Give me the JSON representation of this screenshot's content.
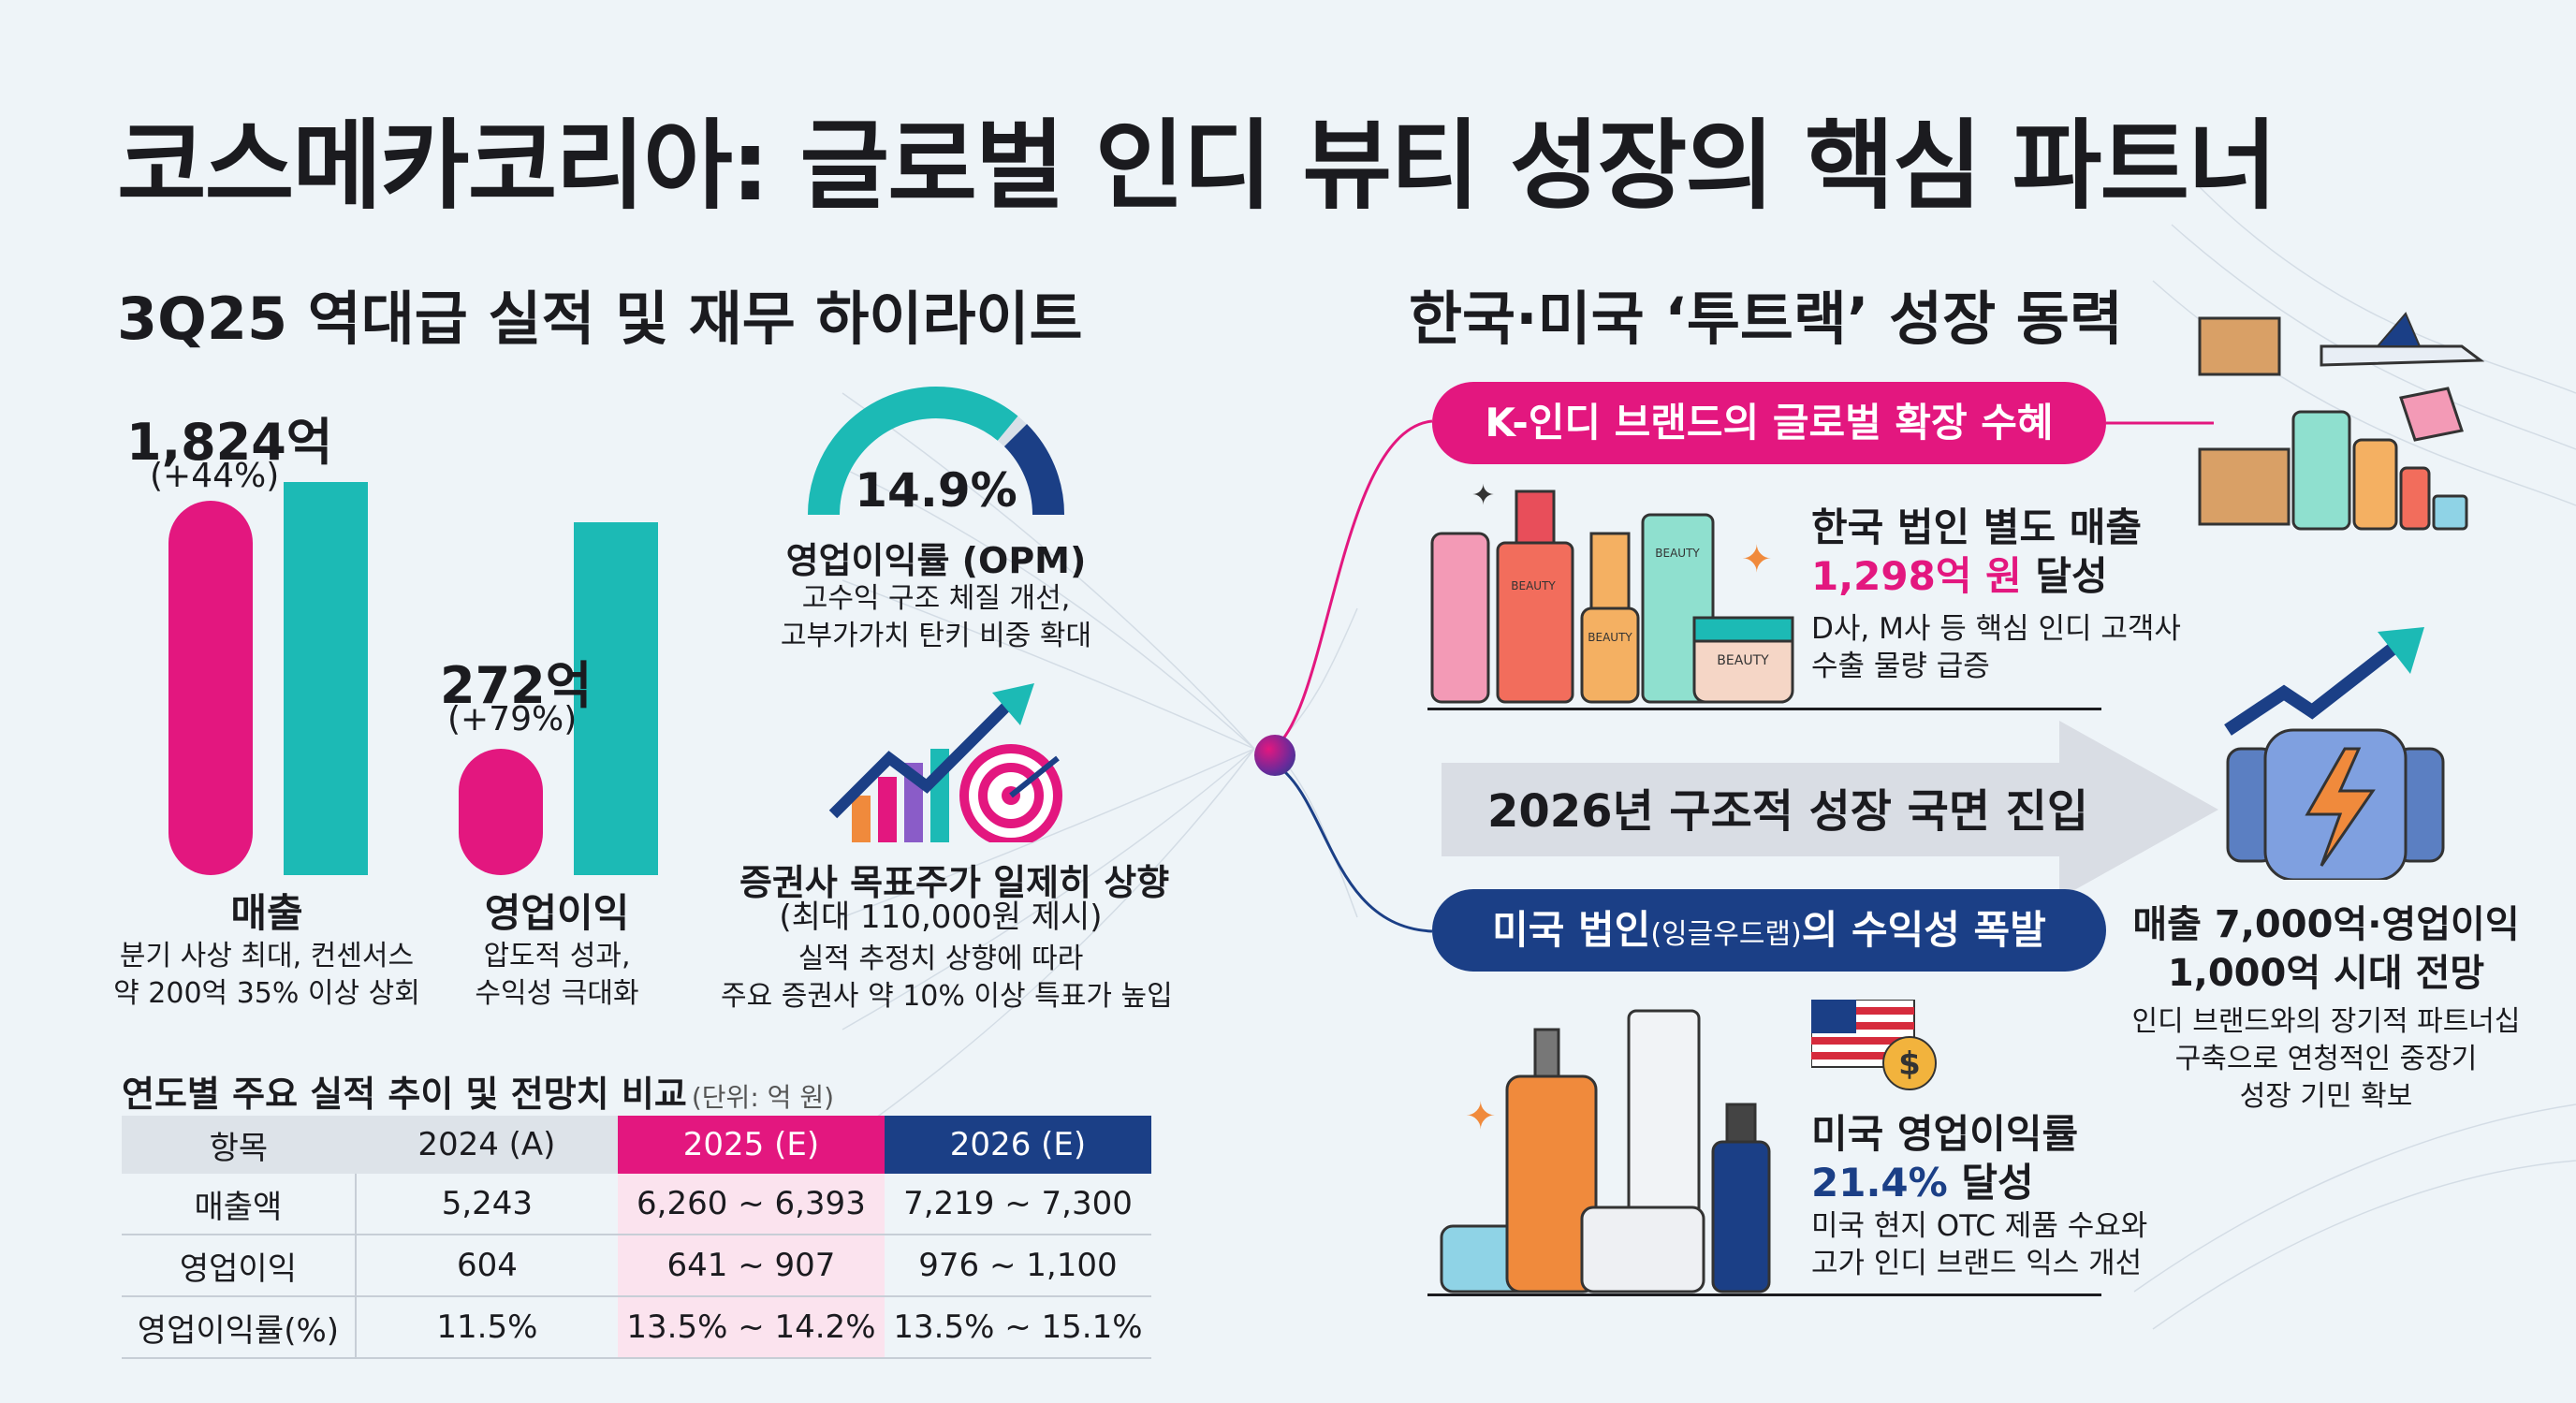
{
  "title": "코스메카코리아: 글로벌 인디 뷰티 성장의 핵심 파트너",
  "left_section": {
    "heading": "3Q25 역대급 실적 및 재무 하이라이트",
    "bar_groups": [
      {
        "value_label": "1,824억",
        "growth": "(+44%)",
        "label": "매출",
        "desc_lines": [
          "분기 사상 최대, 컨센서스",
          "약 200억 35% 이상 상회"
        ]
      },
      {
        "value_label": "272억",
        "growth": "(+79%)",
        "label": "영업이익",
        "desc_lines": [
          "압도적 성과,",
          "수익성 극대화"
        ]
      }
    ],
    "opm": {
      "value": "14.9%",
      "fill_fraction": 0.72,
      "label": "영업이익률 (OPM)",
      "desc_lines": [
        "고수익 구조 체질 개선,",
        "고부가가치 탄키 비중 확대"
      ]
    },
    "target": {
      "label": "증권사 목표주가 일제히 상향",
      "sub": "(최대 110,000원 제시)",
      "desc_lines": [
        "실적 추정치 상향에 따라",
        "주요 증권사 약 10% 이상 특표가 높입"
      ]
    }
  },
  "table": {
    "title": "연도별 주요 실적 추이 및 전망치 비교",
    "unit": "(단위: 억 원)",
    "headers": [
      "항목",
      "2024 (A)",
      "2025 (E)",
      "2026 (E)"
    ],
    "rows": [
      [
        "매출액",
        "5,243",
        "6,260 ~ 6,393",
        "7,219 ~ 7,300"
      ],
      [
        "영업이익",
        "604",
        "641 ~ 907",
        "976 ~ 1,100"
      ],
      [
        "영업이익률(%)",
        "11.5%",
        "13.5% ~ 14.2%",
        "13.5% ~ 15.1%"
      ]
    ]
  },
  "right_section": {
    "heading": "한국·미국 ‘투트랙’ 성장 동력",
    "korea": {
      "pill": "K-인디 브랜드의 글로벌 확장 수혜",
      "title": "한국 법인 별도 매출",
      "value": "1,298억 원",
      "value_suffix": "달성",
      "desc_lines": [
        "D사, M사 등 핵심 인디 고객사",
        "수출 물량 급증"
      ]
    },
    "arrow_text": "2026년 구조적 성장 국면 진입",
    "usa": {
      "pill_main": "미국 법인",
      "pill_small": "(잉글우드랩)",
      "pill_end": "의 수익성 폭발",
      "title": "미국 영업이익률",
      "value": "21.4%",
      "value_suffix": "달성",
      "desc_lines": [
        "미국 현지 OTC 제품 수요와",
        "고가 인디 브랜드 익스 개선"
      ]
    },
    "outlook": {
      "title_lines": [
        "매출 7,000억·영업이익",
        "1,000억 시대 전망"
      ],
      "desc_lines": [
        "인디 브랜드와의 장기적 파트너십",
        "구축으로 연청적인 중장기",
        "성장 기민 확보"
      ]
    },
    "product_labels": {
      "tube": "BEAUTY",
      "jar": "BEAUTY",
      "small": "BEAUTY",
      "pump": "BEAUTY"
    }
  },
  "colors": {
    "pink": "#e3177f",
    "teal": "#1cbab5",
    "navy": "#1b3f86",
    "bg": "#eef4f8"
  }
}
